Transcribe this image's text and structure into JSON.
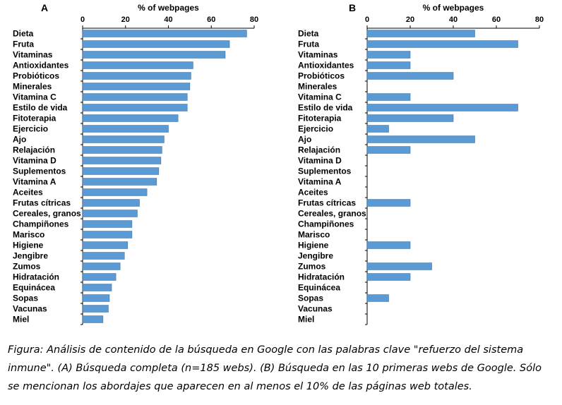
{
  "chart_data": [
    {
      "type": "bar",
      "orientation": "horizontal",
      "panel": "A",
      "title": "% of webpages",
      "xlim": [
        0,
        80
      ],
      "xticks": [
        0,
        20,
        40,
        60,
        80
      ],
      "categories": [
        "Dieta",
        "Fruta",
        "Vitaminas",
        "Antioxidantes",
        "Probióticos",
        "Minerales",
        "Vitamina C",
        "Estilo de vida",
        "Fitoterapia",
        "Ejercicio",
        "Ajo",
        "Relajación",
        "Vitamina D",
        "Suplementos",
        "Vitamina A",
        "Aceites",
        "Frutas cítricas",
        "Cereales, granos",
        "Champiñones",
        "Marisco",
        "Higiene",
        "Jengibre",
        "Zumos",
        "Hidratación",
        "Equinácea",
        "Sopas",
        "Vacunas",
        "Miel"
      ],
      "values": [
        76.5,
        68.5,
        66.5,
        51.5,
        50.5,
        50.0,
        48.8,
        48.8,
        44.5,
        40.0,
        38.0,
        37.0,
        36.5,
        35.5,
        34.5,
        30.0,
        26.5,
        25.5,
        23.0,
        23.0,
        21.0,
        19.5,
        17.5,
        15.5,
        13.5,
        12.5,
        12.0,
        9.5
      ]
    },
    {
      "type": "bar",
      "orientation": "horizontal",
      "panel": "B",
      "title": "% of webpages",
      "xlim": [
        0,
        80
      ],
      "xticks": [
        0,
        20,
        40,
        60,
        80
      ],
      "categories": [
        "Dieta",
        "Fruta",
        "Vitaminas",
        "Antioxidantes",
        "Probióticos",
        "Minerales",
        "Vitamina C",
        "Estilo de vida",
        "Fitoterapia",
        "Ejercicio",
        "Ajo",
        "Relajación",
        "Vitamina D",
        "Suplementos",
        "Vitamina A",
        "Aceites",
        "Frutas cítricas",
        "Cereales, granos",
        "Champiñones",
        "Marisco",
        "Higiene",
        "Jengibre",
        "Zumos",
        "Hidratación",
        "Equinácea",
        "Sopas",
        "Vacunas",
        "Miel"
      ],
      "values": [
        50,
        70,
        20,
        20,
        40,
        0,
        20,
        70,
        40,
        10,
        50,
        20,
        0,
        0,
        0,
        0,
        20,
        0,
        0,
        0,
        20,
        0,
        30,
        20,
        0,
        10,
        0,
        0
      ]
    }
  ],
  "caption": {
    "line1": "Figura: Análisis de contenido de la búsqueda en Google con las palabras clave \"refuerzo del sistema",
    "line2": "inmune\". (A) Búsqueda completa (n=185 webs). (B) Búsqueda en las 10 primeras webs de Google. Sólo",
    "line3": "se mencionan los abordajes que aparecen en al menos el 10% de las páginas web totales."
  }
}
